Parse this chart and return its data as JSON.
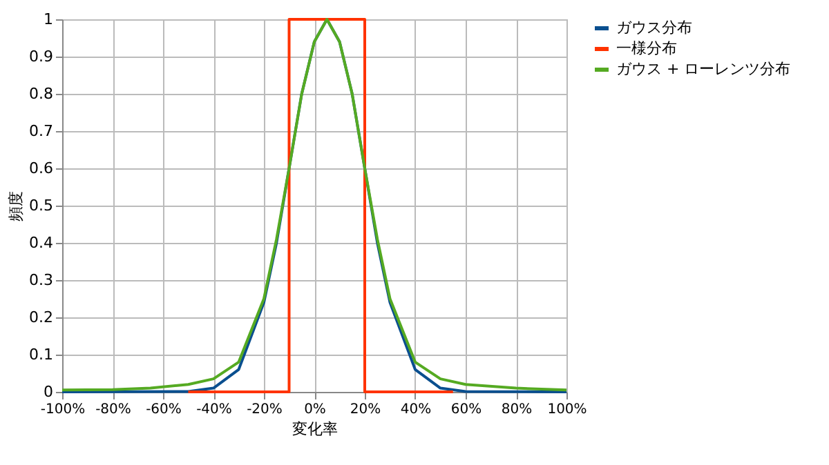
{
  "chart_data": {
    "type": "line",
    "xlabel": "変化率",
    "ylabel": "頻度",
    "xlim": [
      -100,
      100
    ],
    "ylim": [
      0,
      1
    ],
    "xticks": [
      {
        "value": -100,
        "label": "-100%"
      },
      {
        "value": -80,
        "label": "-80%"
      },
      {
        "value": -60,
        "label": "-60%"
      },
      {
        "value": -40,
        "label": "-40%"
      },
      {
        "value": -20,
        "label": "-20%"
      },
      {
        "value": 0,
        "label": "0%"
      },
      {
        "value": 20,
        "label": "20%"
      },
      {
        "value": 40,
        "label": "40%"
      },
      {
        "value": 60,
        "label": "60%"
      },
      {
        "value": 80,
        "label": "80%"
      },
      {
        "value": 100,
        "label": "100%"
      }
    ],
    "yticks": [
      {
        "value": 0,
        "label": "0"
      },
      0.1,
      0.2,
      0.3,
      0.4,
      0.5,
      0.6,
      0.7,
      0.8,
      0.9,
      {
        "value": 1,
        "label": "1"
      }
    ],
    "grid": true,
    "legend": "right",
    "marker": "none",
    "series": [
      {
        "name": "ガウス分布",
        "color": "#0a4f8f",
        "x": [
          -100,
          -50,
          -40,
          -30,
          -20,
          -15,
          -10,
          -5,
          0,
          5,
          10,
          15,
          20,
          25,
          30,
          40,
          50,
          60,
          100
        ],
        "values": [
          0,
          0.001,
          0.01,
          0.06,
          0.24,
          0.4,
          0.6,
          0.8,
          0.94,
          1,
          0.94,
          0.8,
          0.6,
          0.4,
          0.24,
          0.06,
          0.01,
          0.001,
          0
        ]
      },
      {
        "name": "一様分布",
        "color": "#ff3300",
        "x": [
          -50,
          -10,
          -10,
          20,
          20,
          55
        ],
        "values": [
          0,
          0,
          1,
          1,
          0,
          0
        ]
      },
      {
        "name": "ガウス + ローレンツ分布",
        "color": "#55aa22",
        "x": [
          -100,
          -80,
          -65,
          -50,
          -40,
          -30,
          -20,
          -15,
          -10,
          -5,
          0,
          5,
          10,
          15,
          20,
          25,
          30,
          40,
          50,
          60,
          80,
          100
        ],
        "values": [
          0.005,
          0.006,
          0.01,
          0.02,
          0.035,
          0.08,
          0.25,
          0.41,
          0.6,
          0.8,
          0.94,
          1,
          0.94,
          0.8,
          0.6,
          0.41,
          0.25,
          0.08,
          0.035,
          0.02,
          0.01,
          0.005
        ]
      }
    ]
  }
}
